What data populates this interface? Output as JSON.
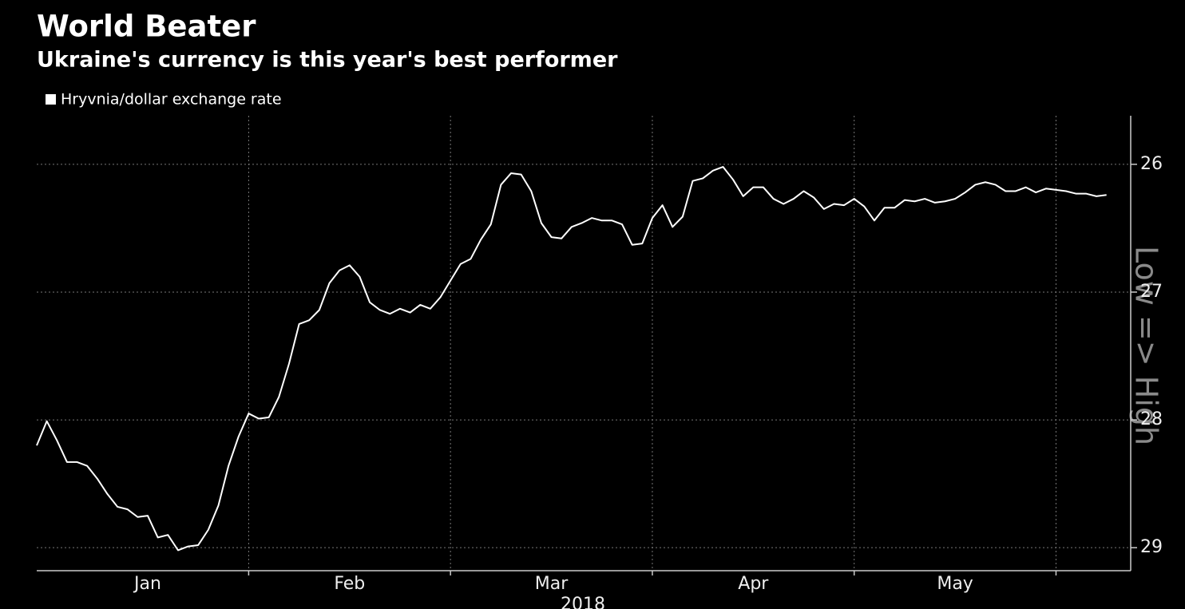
{
  "chart_data": {
    "type": "line",
    "title": "World Beater",
    "subtitle": "Ukraine's currency is this year's best performer",
    "y_label": "Low => High",
    "x_label": "2018",
    "xlim": [
      0.95,
      6.37
    ],
    "xticks": [
      {
        "value": 1.5,
        "label": "Jan"
      },
      {
        "value": 2.5,
        "label": "Feb"
      },
      {
        "value": 3.5,
        "label": "Mar"
      },
      {
        "value": 4.5,
        "label": "Apr"
      },
      {
        "value": 5.5,
        "label": "May"
      }
    ],
    "xgrid": [
      2,
      3,
      4,
      5,
      6
    ],
    "ylim": [
      25.62,
      29.18
    ],
    "y_inverted": true,
    "yticks": [
      26,
      27,
      28,
      29
    ],
    "grid": true,
    "series": [
      {
        "name": "Hryvnia/dollar exchange rate",
        "color": "#ffffff",
        "x": [
          0.95,
          1,
          1.05,
          1.1,
          1.15,
          1.2,
          1.25,
          1.3,
          1.35,
          1.4,
          1.45,
          1.5,
          1.55,
          1.6,
          1.65,
          1.7,
          1.75,
          1.8,
          1.85,
          1.9,
          1.95,
          2,
          2.05,
          2.1,
          2.15,
          2.2,
          2.25,
          2.3,
          2.35,
          2.4,
          2.45,
          2.5,
          2.55,
          2.6,
          2.65,
          2.7,
          2.75,
          2.8,
          2.85,
          2.9,
          2.95,
          3,
          3.05,
          3.1,
          3.15,
          3.2,
          3.25,
          3.3,
          3.35,
          3.4,
          3.45,
          3.5,
          3.55,
          3.6,
          3.65,
          3.7,
          3.75,
          3.8,
          3.85,
          3.9,
          3.95,
          4,
          4.05,
          4.1,
          4.15,
          4.2,
          4.25,
          4.3,
          4.35,
          4.4,
          4.45,
          4.5,
          4.55,
          4.6,
          4.65,
          4.7,
          4.75,
          4.8,
          4.85,
          4.9,
          4.95,
          5,
          5.05,
          5.1,
          5.15,
          5.2,
          5.25,
          5.3,
          5.35,
          5.4,
          5.45,
          5.5,
          5.55,
          5.6,
          5.65,
          5.7,
          5.75,
          5.8,
          5.85,
          5.9,
          5.95,
          6,
          6.05,
          6.1,
          6.15,
          6.2,
          6.25
        ],
        "values": [
          28.2,
          28.01,
          28.16,
          28.33,
          28.33,
          28.36,
          28.46,
          28.58,
          28.68,
          28.7,
          28.76,
          28.75,
          28.92,
          28.9,
          29.02,
          28.99,
          28.98,
          28.86,
          28.67,
          28.36,
          28.13,
          27.95,
          27.99,
          27.98,
          27.82,
          27.56,
          27.25,
          27.22,
          27.14,
          26.93,
          26.83,
          26.79,
          26.88,
          27.08,
          27.14,
          27.17,
          27.13,
          27.16,
          27.1,
          27.13,
          27.04,
          26.91,
          26.78,
          26.74,
          26.59,
          26.47,
          26.16,
          26.07,
          26.08,
          26.21,
          26.46,
          26.57,
          26.58,
          26.49,
          26.46,
          26.42,
          26.44,
          26.44,
          26.47,
          26.63,
          26.62,
          26.42,
          26.32,
          26.49,
          26.41,
          26.13,
          26.11,
          26.05,
          26.02,
          26.12,
          26.25,
          26.18,
          26.18,
          26.27,
          26.31,
          26.27,
          26.21,
          26.26,
          26.35,
          26.31,
          26.32,
          26.27,
          26.33,
          26.44,
          26.34,
          26.34,
          26.28,
          26.29,
          26.27,
          26.3,
          26.29,
          26.27,
          26.22,
          26.16,
          26.14,
          26.16,
          26.21,
          26.21,
          26.18,
          26.22,
          26.19,
          26.2,
          26.21,
          26.23,
          26.23,
          26.25,
          26.24
        ]
      }
    ]
  }
}
